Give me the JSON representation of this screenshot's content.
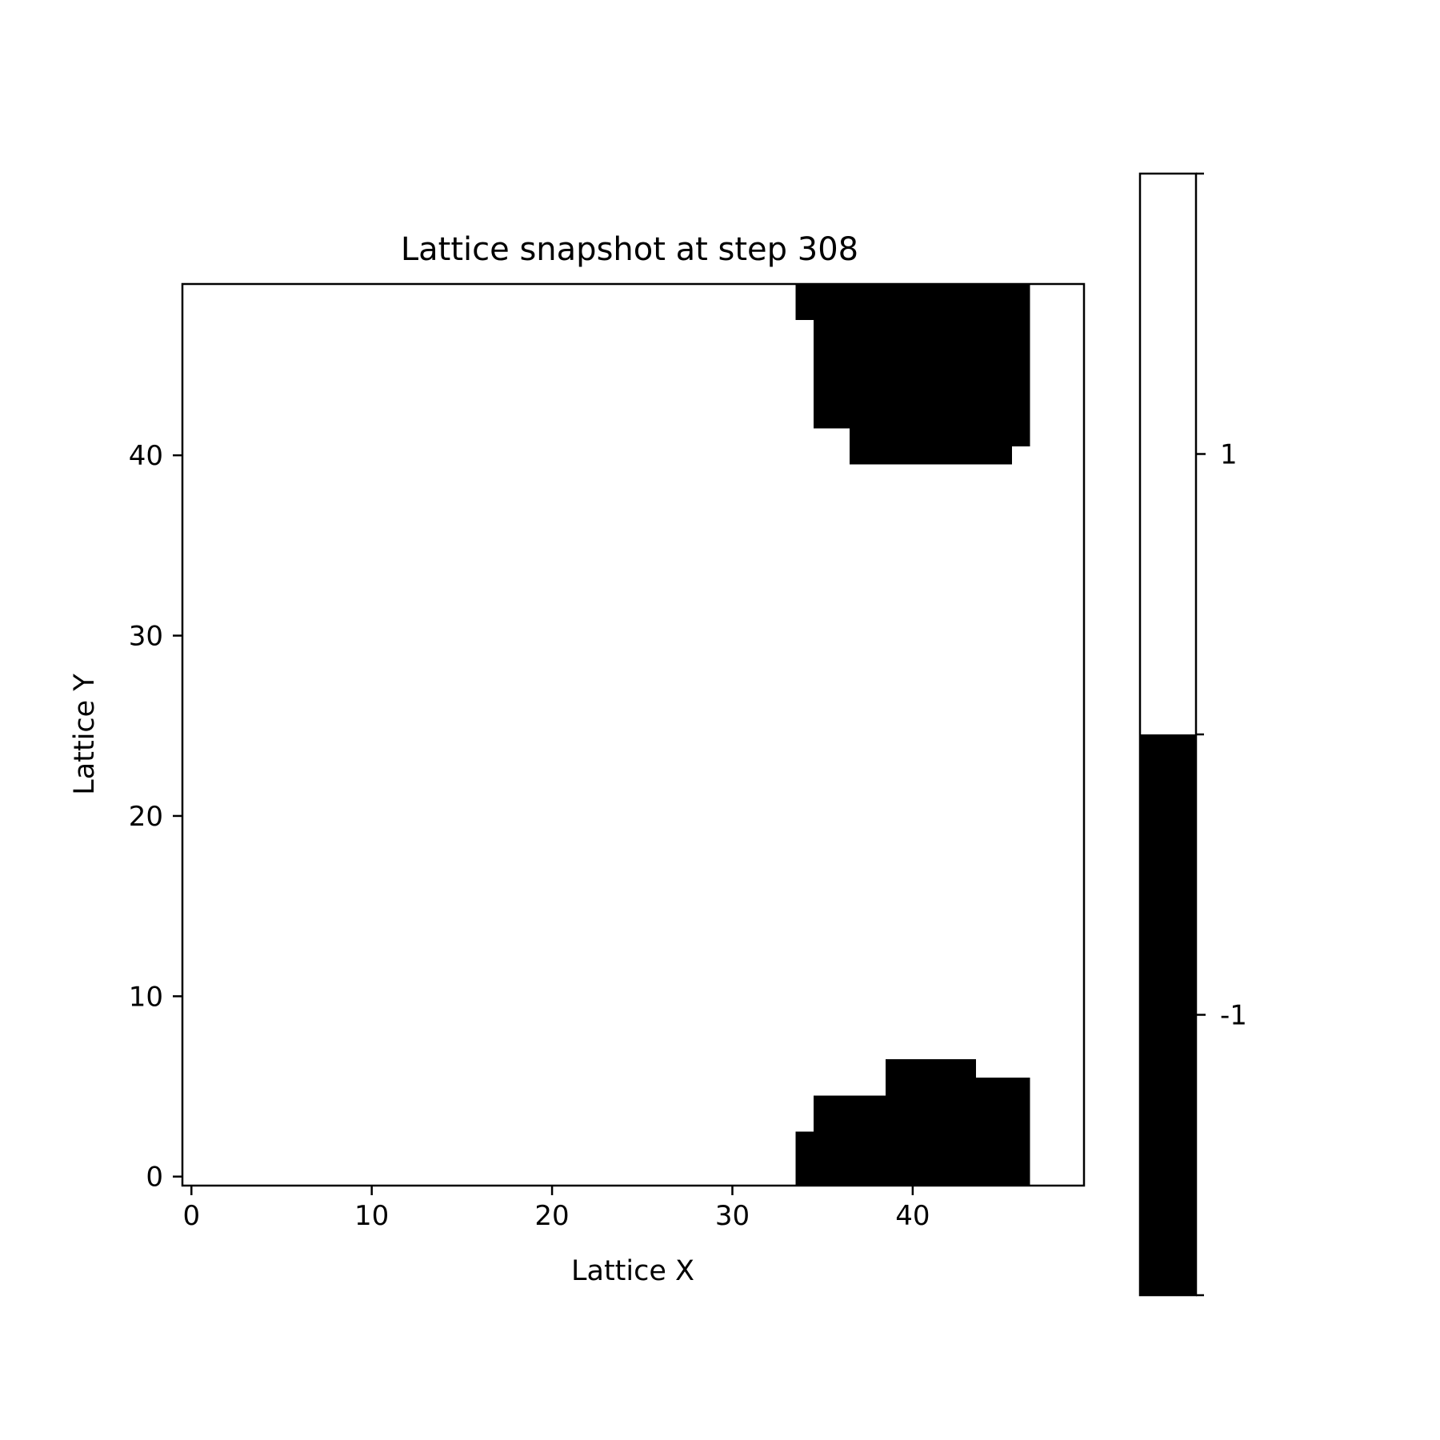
{
  "chart_data": {
    "type": "heatmap",
    "title": "Lattice snapshot at step 308",
    "xlabel": "Lattice X",
    "ylabel": "Lattice Y",
    "grid_size": [
      50,
      50
    ],
    "origin": "lower",
    "xlim": [
      -0.5,
      49.5
    ],
    "ylim": [
      -0.5,
      49.5
    ],
    "x_ticks": [
      0,
      10,
      20,
      30,
      40
    ],
    "y_ticks": [
      0,
      10,
      20,
      30,
      40
    ],
    "grid": false,
    "background_value": 1,
    "minus_one_regions": [
      {
        "x": [
          34,
          46
        ],
        "y": [
          0,
          2
        ]
      },
      {
        "x": [
          35,
          46
        ],
        "y": [
          3,
          4
        ]
      },
      {
        "x": [
          39,
          46
        ],
        "y": [
          5,
          5
        ]
      },
      {
        "x": [
          39,
          43
        ],
        "y": [
          6,
          6
        ]
      },
      {
        "x": [
          37,
          45
        ],
        "y": [
          40,
          40
        ]
      },
      {
        "x": [
          37,
          46
        ],
        "y": [
          41,
          41
        ]
      },
      {
        "x": [
          35,
          46
        ],
        "y": [
          42,
          47
        ]
      },
      {
        "x": [
          34,
          46
        ],
        "y": [
          48,
          49
        ]
      }
    ],
    "colorbar": {
      "ticks": [
        1,
        -1
      ],
      "tick_labels": [
        "1",
        "-1"
      ],
      "colors": {
        "1": "#ffffff",
        "-1": "#000000"
      },
      "placement": "right"
    }
  }
}
